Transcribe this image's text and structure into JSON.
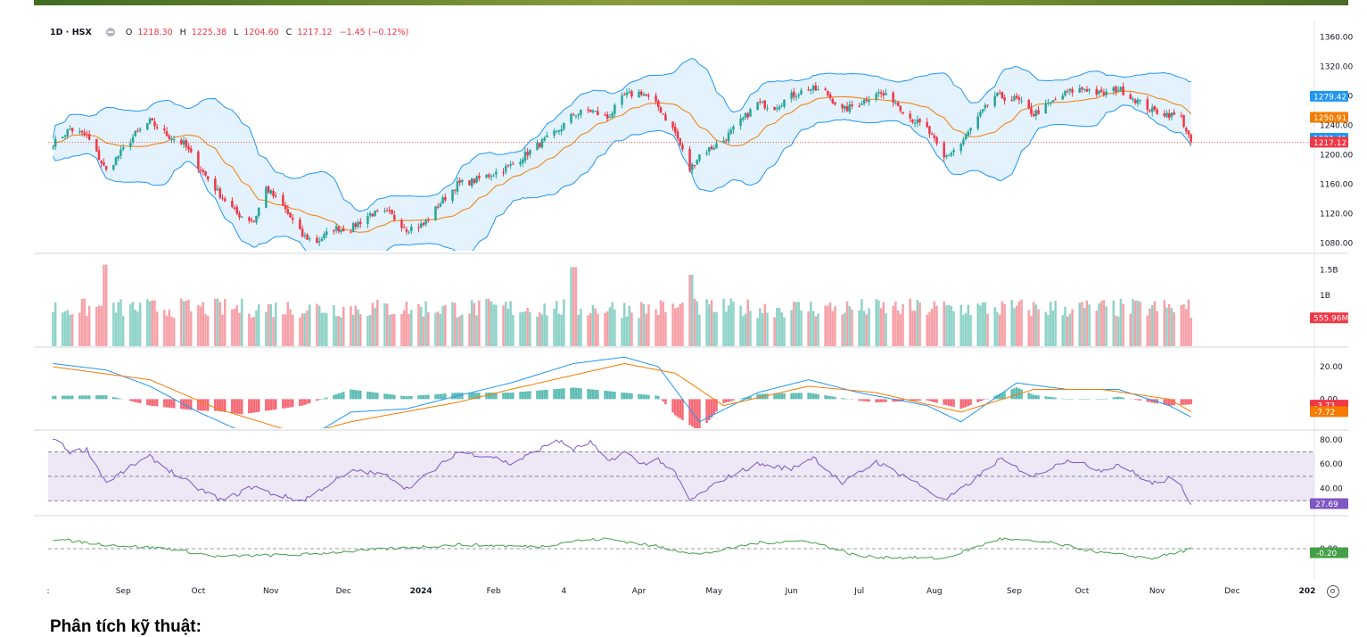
{
  "legend": {
    "symbol": "1D · HSX",
    "open_label": "O",
    "open": "1218.30",
    "high_label": "H",
    "high": "1225.38",
    "low_label": "L",
    "low": "1204.60",
    "close_label": "C",
    "close": "1217.12",
    "change": "−1.45 (−0.12%)"
  },
  "footer": {
    "heading": "Phân tích kỹ thuật:"
  },
  "colors": {
    "up": "#26a69a",
    "down": "#f23645",
    "upVol": "#8fd3c8",
    "downVol": "#f7a1a8",
    "bb": "#2196f3",
    "bbFill": "#e3f2fd",
    "ma": "#f57c00",
    "rsi": "#7e57c2",
    "rsiBand": "#ede7f6",
    "osc": "#43a047",
    "grid": "#e0e3eb",
    "text": "#131722",
    "lastPrice": "#f23645"
  },
  "chart_data": [
    {
      "type": "candlestick",
      "title": "",
      "ylim": [
        1070,
        1370
      ],
      "y_ticks": [
        "1360.00",
        "1320.00",
        "1280.00",
        "1240.00",
        "1200.00",
        "1160.00",
        "1120.00",
        "1080.00"
      ],
      "x_tick_labels": [
        ":",
        "Sep",
        "Oct",
        "Nov",
        "Dec",
        "2024",
        "Feb",
        "4",
        "Apr",
        "May",
        "Jun",
        "Jul",
        "Aug",
        "Sep",
        "Oct",
        "Nov",
        "Dec",
        "202"
      ],
      "x_tick_dates": [
        "2023-08-01",
        "2023-09-01",
        "2023-10-02",
        "2023-11-01",
        "2023-12-01",
        "2024-01-02",
        "2024-02-01",
        "2024-03-01",
        "2024-04-01",
        "2024-05-02",
        "2024-06-03",
        "2024-07-01",
        "2024-08-01",
        "2024-09-03",
        "2024-10-01",
        "2024-11-01",
        "2024-12-02",
        "2025-01-02"
      ],
      "date_range": [
        "2023-08-03",
        "2024-11-15"
      ],
      "price_path": [
        {
          "date": "2023-08-03",
          "value": 1215
        },
        {
          "date": "2023-08-10",
          "value": 1235
        },
        {
          "date": "2023-08-17",
          "value": 1225
        },
        {
          "date": "2023-08-25",
          "value": 1178
        },
        {
          "date": "2023-09-06",
          "value": 1228
        },
        {
          "date": "2023-09-12",
          "value": 1245
        },
        {
          "date": "2023-09-20",
          "value": 1225
        },
        {
          "date": "2023-09-26",
          "value": 1215
        },
        {
          "date": "2023-10-02",
          "value": 1185
        },
        {
          "date": "2023-10-10",
          "value": 1150
        },
        {
          "date": "2023-10-18",
          "value": 1120
        },
        {
          "date": "2023-10-25",
          "value": 1110
        },
        {
          "date": "2023-10-30",
          "value": 1155
        },
        {
          "date": "2023-11-06",
          "value": 1130
        },
        {
          "date": "2023-11-14",
          "value": 1090
        },
        {
          "date": "2023-11-20",
          "value": 1082
        },
        {
          "date": "2023-11-27",
          "value": 1100
        },
        {
          "date": "2023-12-04",
          "value": 1100
        },
        {
          "date": "2023-12-12",
          "value": 1120
        },
        {
          "date": "2023-12-20",
          "value": 1120
        },
        {
          "date": "2023-12-27",
          "value": 1100
        },
        {
          "date": "2024-01-03",
          "value": 1105
        },
        {
          "date": "2024-01-10",
          "value": 1135
        },
        {
          "date": "2024-01-17",
          "value": 1160
        },
        {
          "date": "2024-01-24",
          "value": 1165
        },
        {
          "date": "2024-02-01",
          "value": 1175
        },
        {
          "date": "2024-02-08",
          "value": 1185
        },
        {
          "date": "2024-02-20",
          "value": 1215
        },
        {
          "date": "2024-02-27",
          "value": 1230
        },
        {
          "date": "2024-03-05",
          "value": 1255
        },
        {
          "date": "2024-03-12",
          "value": 1260
        },
        {
          "date": "2024-03-19",
          "value": 1250
        },
        {
          "date": "2024-03-26",
          "value": 1280
        },
        {
          "date": "2024-04-02",
          "value": 1285
        },
        {
          "date": "2024-04-09",
          "value": 1265
        },
        {
          "date": "2024-04-16",
          "value": 1230
        },
        {
          "date": "2024-04-22",
          "value": 1180
        },
        {
          "date": "2024-04-26",
          "value": 1200
        },
        {
          "date": "2024-05-06",
          "value": 1220
        },
        {
          "date": "2024-05-13",
          "value": 1245
        },
        {
          "date": "2024-05-20",
          "value": 1270
        },
        {
          "date": "2024-05-27",
          "value": 1265
        },
        {
          "date": "2024-06-03",
          "value": 1280
        },
        {
          "date": "2024-06-10",
          "value": 1290
        },
        {
          "date": "2024-06-17",
          "value": 1285
        },
        {
          "date": "2024-06-24",
          "value": 1260
        },
        {
          "date": "2024-07-01",
          "value": 1270
        },
        {
          "date": "2024-07-08",
          "value": 1285
        },
        {
          "date": "2024-07-15",
          "value": 1275
        },
        {
          "date": "2024-07-22",
          "value": 1250
        },
        {
          "date": "2024-07-29",
          "value": 1235
        },
        {
          "date": "2024-08-05",
          "value": 1195
        },
        {
          "date": "2024-08-12",
          "value": 1215
        },
        {
          "date": "2024-08-19",
          "value": 1250
        },
        {
          "date": "2024-08-26",
          "value": 1280
        },
        {
          "date": "2024-09-04",
          "value": 1275
        },
        {
          "date": "2024-09-11",
          "value": 1255
        },
        {
          "date": "2024-09-18",
          "value": 1270
        },
        {
          "date": "2024-09-25",
          "value": 1285
        },
        {
          "date": "2024-10-02",
          "value": 1290
        },
        {
          "date": "2024-10-09",
          "value": 1282
        },
        {
          "date": "2024-10-16",
          "value": 1290
        },
        {
          "date": "2024-10-23",
          "value": 1275
        },
        {
          "date": "2024-10-30",
          "value": 1260
        },
        {
          "date": "2024-11-06",
          "value": 1255
        },
        {
          "date": "2024-11-11",
          "value": 1250
        },
        {
          "date": "2024-11-15",
          "value": 1217.12
        }
      ],
      "last_candle": {
        "date": "2024-11-15",
        "open": 1218.3,
        "high": 1225.38,
        "low": 1204.6,
        "close": 1217.12
      },
      "price_labels": [
        {
          "name": "BB upper",
          "value": 1279.42,
          "text": "1279.42",
          "color": "#2196f3"
        },
        {
          "name": "MA",
          "value": 1250.91,
          "text": "1250.91",
          "color": "#f57c00"
        },
        {
          "name": "BB lower",
          "value": 1222.41,
          "text": "1222.41",
          "color": "#2196f3"
        },
        {
          "name": "Close",
          "value": 1217.12,
          "text": "1217.12",
          "color": "#f23645"
        }
      ]
    },
    {
      "type": "bar",
      "y_ticks": [
        "1.5B",
        "1B"
      ],
      "ylim": [
        0,
        1.75
      ],
      "unit": "B",
      "last_value": 0.55596,
      "last_label": "555.96M",
      "typical_range": [
        0.55,
        1.2
      ],
      "peaks": [
        {
          "date": "2023-08-25",
          "value": 1.6
        },
        {
          "date": "2024-03-05",
          "value": 1.55
        },
        {
          "date": "2024-04-22",
          "value": 1.4
        }
      ]
    },
    {
      "type": "line",
      "name_hint": "MACD",
      "ylim": [
        -18,
        30
      ],
      "y_ticks": [
        "20.00",
        "0.00"
      ],
      "labels": [
        {
          "value": -3.73,
          "text": "-3.73",
          "color": "#f23645"
        },
        {
          "value": -7.72,
          "text": "-7.72",
          "color": "#f57c00"
        }
      ],
      "macd_path": [
        {
          "date": "2023-08-03",
          "value": 22
        },
        {
          "date": "2023-08-25",
          "value": 18
        },
        {
          "date": "2023-09-12",
          "value": 8
        },
        {
          "date": "2023-10-02",
          "value": -8
        },
        {
          "date": "2023-10-20",
          "value": -20
        },
        {
          "date": "2023-11-14",
          "value": -26
        },
        {
          "date": "2023-12-04",
          "value": -8
        },
        {
          "date": "2023-12-27",
          "value": -6
        },
        {
          "date": "2024-01-17",
          "value": 2
        },
        {
          "date": "2024-02-08",
          "value": 10
        },
        {
          "date": "2024-03-05",
          "value": 22
        },
        {
          "date": "2024-03-26",
          "value": 26
        },
        {
          "date": "2024-04-09",
          "value": 20
        },
        {
          "date": "2024-04-26",
          "value": -14
        },
        {
          "date": "2024-05-20",
          "value": 4
        },
        {
          "date": "2024-06-10",
          "value": 12
        },
        {
          "date": "2024-07-01",
          "value": 4
        },
        {
          "date": "2024-07-29",
          "value": -4
        },
        {
          "date": "2024-08-12",
          "value": -14
        },
        {
          "date": "2024-09-04",
          "value": 10
        },
        {
          "date": "2024-09-25",
          "value": 6
        },
        {
          "date": "2024-10-16",
          "value": 6
        },
        {
          "date": "2024-11-06",
          "value": -4
        },
        {
          "date": "2024-11-15",
          "value": -11
        }
      ],
      "signal_path": [
        {
          "date": "2023-08-03",
          "value": 20
        },
        {
          "date": "2023-09-12",
          "value": 12
        },
        {
          "date": "2023-10-10",
          "value": -6
        },
        {
          "date": "2023-11-14",
          "value": -22
        },
        {
          "date": "2023-12-04",
          "value": -14
        },
        {
          "date": "2024-01-17",
          "value": -2
        },
        {
          "date": "2024-02-08",
          "value": 6
        },
        {
          "date": "2024-03-26",
          "value": 22
        },
        {
          "date": "2024-04-16",
          "value": 16
        },
        {
          "date": "2024-05-06",
          "value": -4
        },
        {
          "date": "2024-06-10",
          "value": 8
        },
        {
          "date": "2024-07-08",
          "value": 4
        },
        {
          "date": "2024-08-12",
          "value": -8
        },
        {
          "date": "2024-09-11",
          "value": 6
        },
        {
          "date": "2024-10-09",
          "value": 6
        },
        {
          "date": "2024-11-06",
          "value": 0
        },
        {
          "date": "2024-11-15",
          "value": -7.72
        }
      ]
    },
    {
      "type": "line",
      "name_hint": "RSI",
      "ylim": [
        20,
        85
      ],
      "y_ticks": [
        "80.00",
        "60.00",
        "40.00"
      ],
      "band": [
        30,
        70
      ],
      "mid": 50,
      "last_label": "27.69",
      "path": [
        {
          "date": "2023-08-03",
          "value": 82
        },
        {
          "date": "2023-08-10",
          "value": 70
        },
        {
          "date": "2023-08-17",
          "value": 72
        },
        {
          "date": "2023-08-25",
          "value": 45
        },
        {
          "date": "2023-09-06",
          "value": 60
        },
        {
          "date": "2023-09-12",
          "value": 66
        },
        {
          "date": "2023-09-20",
          "value": 55
        },
        {
          "date": "2023-10-02",
          "value": 40
        },
        {
          "date": "2023-10-12",
          "value": 30
        },
        {
          "date": "2023-10-25",
          "value": 42
        },
        {
          "date": "2023-11-01",
          "value": 36
        },
        {
          "date": "2023-11-14",
          "value": 30
        },
        {
          "date": "2023-11-27",
          "value": 46
        },
        {
          "date": "2023-12-06",
          "value": 55
        },
        {
          "date": "2023-12-20",
          "value": 50
        },
        {
          "date": "2023-12-27",
          "value": 40
        },
        {
          "date": "2024-01-08",
          "value": 56
        },
        {
          "date": "2024-01-17",
          "value": 70
        },
        {
          "date": "2024-02-01",
          "value": 66
        },
        {
          "date": "2024-02-08",
          "value": 60
        },
        {
          "date": "2024-02-20",
          "value": 72
        },
        {
          "date": "2024-02-27",
          "value": 80
        },
        {
          "date": "2024-03-05",
          "value": 72
        },
        {
          "date": "2024-03-12",
          "value": 78
        },
        {
          "date": "2024-03-19",
          "value": 62
        },
        {
          "date": "2024-03-26",
          "value": 70
        },
        {
          "date": "2024-04-02",
          "value": 60
        },
        {
          "date": "2024-04-09",
          "value": 64
        },
        {
          "date": "2024-04-16",
          "value": 52
        },
        {
          "date": "2024-04-22",
          "value": 30
        },
        {
          "date": "2024-05-06",
          "value": 48
        },
        {
          "date": "2024-05-20",
          "value": 60
        },
        {
          "date": "2024-06-03",
          "value": 56
        },
        {
          "date": "2024-06-12",
          "value": 66
        },
        {
          "date": "2024-06-24",
          "value": 44
        },
        {
          "date": "2024-07-08",
          "value": 62
        },
        {
          "date": "2024-07-22",
          "value": 48
        },
        {
          "date": "2024-08-05",
          "value": 30
        },
        {
          "date": "2024-08-14",
          "value": 42
        },
        {
          "date": "2024-08-28",
          "value": 64
        },
        {
          "date": "2024-09-11",
          "value": 50
        },
        {
          "date": "2024-09-25",
          "value": 64
        },
        {
          "date": "2024-10-09",
          "value": 55
        },
        {
          "date": "2024-10-16",
          "value": 60
        },
        {
          "date": "2024-10-30",
          "value": 44
        },
        {
          "date": "2024-11-06",
          "value": 48
        },
        {
          "date": "2024-11-11",
          "value": 42
        },
        {
          "date": "2024-11-15",
          "value": 27.69
        }
      ]
    },
    {
      "type": "line",
      "ylim": [
        -15,
        15
      ],
      "y_ticks": [
        "0.00"
      ],
      "last_label": "-0.20",
      "path": [
        {
          "date": "2023-08-03",
          "value": 5
        },
        {
          "date": "2023-08-25",
          "value": 2
        },
        {
          "date": "2023-09-20",
          "value": 0
        },
        {
          "date": "2023-10-10",
          "value": -4
        },
        {
          "date": "2023-11-14",
          "value": -3
        },
        {
          "date": "2023-12-20",
          "value": 0
        },
        {
          "date": "2024-01-17",
          "value": 2
        },
        {
          "date": "2024-02-20",
          "value": 1
        },
        {
          "date": "2024-03-05",
          "value": 4
        },
        {
          "date": "2024-03-19",
          "value": 5
        },
        {
          "date": "2024-04-09",
          "value": 1
        },
        {
          "date": "2024-04-26",
          "value": -3
        },
        {
          "date": "2024-05-20",
          "value": 3
        },
        {
          "date": "2024-06-10",
          "value": 4
        },
        {
          "date": "2024-07-01",
          "value": -4
        },
        {
          "date": "2024-08-05",
          "value": -5
        },
        {
          "date": "2024-08-28",
          "value": 5
        },
        {
          "date": "2024-09-18",
          "value": 3
        },
        {
          "date": "2024-10-09",
          "value": -2
        },
        {
          "date": "2024-10-30",
          "value": -5
        },
        {
          "date": "2024-11-15",
          "value": -0.2
        }
      ]
    }
  ]
}
